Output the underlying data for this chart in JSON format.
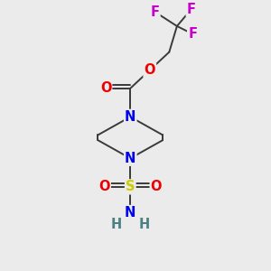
{
  "bg_color": "#ebebeb",
  "atom_colors": {
    "C": "#3a3a3a",
    "N": "#0000ee",
    "O": "#ee0000",
    "S": "#cccc00",
    "F": "#cc00cc",
    "H": "#4a8080"
  },
  "bond_color": "#3a3a3a",
  "lw": 1.4,
  "fs": 10.5,
  "xlim": [
    0,
    10
  ],
  "ylim": [
    0,
    10
  ]
}
